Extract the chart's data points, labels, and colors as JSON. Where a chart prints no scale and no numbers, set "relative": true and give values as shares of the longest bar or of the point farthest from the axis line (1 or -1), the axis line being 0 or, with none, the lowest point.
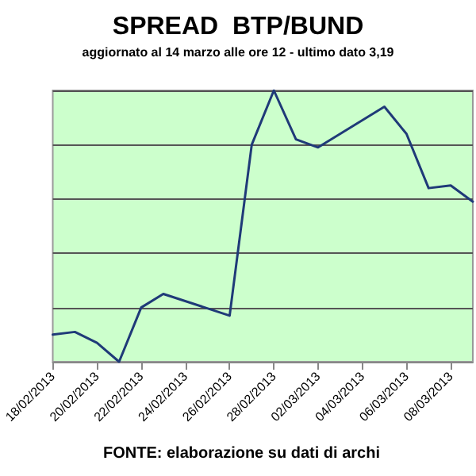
{
  "chart_data": {
    "type": "line",
    "title": "SPREAD  BTP/BUND",
    "subtitle": "aggiornato al 14 marzo alle ore 12 - ultimo dato 3,19",
    "relative": true,
    "x": [
      "2013-02-18",
      "2013-02-19",
      "2013-02-20",
      "2013-02-21",
      "2013-02-22",
      "2013-02-23",
      "2013-02-26",
      "2013-02-27",
      "2013-02-28",
      "2013-03-01",
      "2013-03-02",
      "2013-03-05",
      "2013-03-06",
      "2013-03-07",
      "2013-03-08",
      "2013-03-09"
    ],
    "series": [
      {
        "color": "#1f3a78",
        "values": [
          0.1,
          0.11,
          0.07,
          0,
          0.2,
          0.25,
          0.17,
          0.8,
          1,
          0.82,
          0.79,
          0.94,
          0.84,
          0.64,
          0.65,
          0.59
        ]
      }
    ],
    "xlim": [
      "2013-02-18",
      "2013-03-09"
    ],
    "xticks": [
      {
        "value": "2013-02-18",
        "label": "18/02/2013"
      },
      {
        "value": "2013-02-20",
        "label": "20/02/2013"
      },
      {
        "value": "2013-02-22",
        "label": "22/02/2013"
      },
      {
        "value": "2013-02-24",
        "label": "24/02/2013"
      },
      {
        "value": "2013-02-26",
        "label": "26/02/2013"
      },
      {
        "value": "2013-02-28",
        "label": "28/02/2013"
      },
      {
        "value": "2013-03-02",
        "label": "02/03/2013"
      },
      {
        "value": "2013-03-04",
        "label": "04/03/2013"
      },
      {
        "value": "2013-03-06",
        "label": "06/03/2013"
      },
      {
        "value": "2013-03-08",
        "label": "08/03/2013"
      }
    ],
    "grid": "y",
    "marker": "none",
    "line_style": "solid",
    "annotations": [
      "FONTE: elaborazione su dati di archi"
    ]
  }
}
